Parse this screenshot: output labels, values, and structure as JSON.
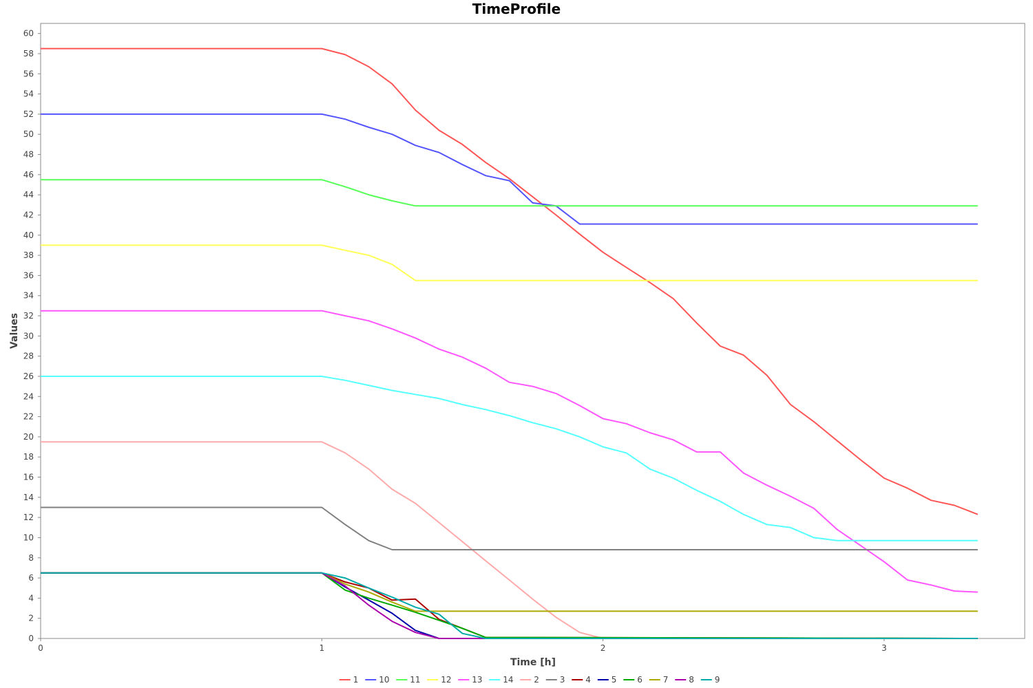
{
  "chart_data": {
    "type": "line",
    "title": "TimeProfile",
    "xlabel": "Time [h]",
    "ylabel": "Values",
    "xlim": [
      0,
      3.5
    ],
    "ylim": [
      0,
      61
    ],
    "x_ticks": [
      0,
      1,
      2,
      3
    ],
    "y_ticks": [
      0,
      2,
      4,
      6,
      8,
      10,
      12,
      14,
      16,
      18,
      20,
      22,
      24,
      26,
      28,
      30,
      32,
      34,
      36,
      38,
      40,
      42,
      44,
      46,
      48,
      50,
      52,
      54,
      56,
      58,
      60
    ],
    "grid": false,
    "legend_position": "bottom",
    "series": [
      {
        "name": "1",
        "color": "#ff5555",
        "x": [
          0,
          1,
          1.083,
          1.167,
          1.25,
          1.333,
          1.417,
          1.5,
          1.583,
          1.667,
          1.75,
          1.833,
          1.917,
          2.0,
          2.083,
          2.167,
          2.25,
          2.333,
          2.417,
          2.5,
          2.583,
          2.667,
          2.75,
          2.833,
          2.917,
          3.0,
          3.083,
          3.167,
          3.25,
          3.333
        ],
        "y": [
          58.5,
          58.5,
          57.9,
          56.7,
          55.0,
          52.4,
          50.4,
          49.0,
          47.2,
          45.6,
          43.8,
          42.0,
          40.1,
          38.3,
          36.8,
          35.3,
          33.7,
          31.3,
          29.0,
          28.1,
          26.1,
          23.2,
          21.5,
          19.6,
          17.7,
          15.9,
          14.9,
          13.7,
          13.2,
          12.3
        ]
      },
      {
        "name": "10",
        "color": "#5555ff",
        "x": [
          0,
          1,
          1.083,
          1.167,
          1.25,
          1.333,
          1.417,
          1.5,
          1.583,
          1.667,
          1.75,
          1.833,
          1.917,
          3.333
        ],
        "y": [
          52.0,
          52.0,
          51.5,
          50.7,
          50.0,
          48.9,
          48.2,
          47.0,
          45.9,
          45.4,
          43.2,
          42.9,
          41.1,
          41.1
        ]
      },
      {
        "name": "11",
        "color": "#55ff55",
        "x": [
          0,
          1,
          1.083,
          1.167,
          1.25,
          1.333,
          3.333
        ],
        "y": [
          45.5,
          45.5,
          44.8,
          44.0,
          43.4,
          42.9,
          42.9
        ]
      },
      {
        "name": "12",
        "color": "#ffff55",
        "x": [
          0,
          1,
          1.083,
          1.167,
          1.25,
          1.333,
          3.333
        ],
        "y": [
          39.0,
          39.0,
          38.5,
          38.0,
          37.1,
          35.5,
          35.5
        ]
      },
      {
        "name": "13",
        "color": "#ff55ff",
        "x": [
          0,
          1,
          1.083,
          1.167,
          1.25,
          1.333,
          1.417,
          1.5,
          1.583,
          1.667,
          1.75,
          1.833,
          1.917,
          2.0,
          2.083,
          2.167,
          2.25,
          2.333,
          2.417,
          2.5,
          2.583,
          2.667,
          2.75,
          2.833,
          2.917,
          3.0,
          3.083,
          3.167,
          3.25,
          3.333
        ],
        "y": [
          32.5,
          32.5,
          32.0,
          31.5,
          30.7,
          29.8,
          28.7,
          27.9,
          26.8,
          25.4,
          25.0,
          24.3,
          23.1,
          21.8,
          21.3,
          20.4,
          19.7,
          18.5,
          18.5,
          16.4,
          15.2,
          14.1,
          12.9,
          10.8,
          9.2,
          7.6,
          5.8,
          5.3,
          4.7,
          4.6
        ]
      },
      {
        "name": "14",
        "color": "#55ffff",
        "x": [
          0,
          1,
          1.083,
          1.167,
          1.25,
          1.333,
          1.417,
          1.5,
          1.583,
          1.667,
          1.75,
          1.833,
          1.917,
          2.0,
          2.083,
          2.167,
          2.25,
          2.333,
          2.417,
          2.5,
          2.583,
          2.667,
          2.75,
          2.833,
          3.333
        ],
        "y": [
          26.0,
          26.0,
          25.6,
          25.1,
          24.6,
          24.2,
          23.8,
          23.2,
          22.7,
          22.1,
          21.4,
          20.8,
          20.0,
          19.0,
          18.4,
          16.8,
          15.9,
          14.7,
          13.6,
          12.3,
          11.3,
          11.0,
          10.0,
          9.7,
          9.7
        ]
      },
      {
        "name": "2",
        "color": "#ffaaaa",
        "x": [
          0,
          1,
          1.083,
          1.167,
          1.25,
          1.333,
          1.417,
          1.5,
          1.583,
          1.667,
          1.75,
          1.833,
          1.917,
          2.0,
          3.333
        ],
        "y": [
          19.5,
          19.5,
          18.4,
          16.8,
          14.8,
          13.4,
          11.5,
          9.6,
          7.7,
          5.8,
          3.9,
          2.1,
          0.6,
          0.0,
          0.0
        ]
      },
      {
        "name": "3",
        "color": "#808080",
        "x": [
          0,
          1,
          1.083,
          1.167,
          1.25,
          3.333
        ],
        "y": [
          13.0,
          13.0,
          11.3,
          9.7,
          8.8,
          8.8
        ]
      },
      {
        "name": "4",
        "color": "#aa0000",
        "x": [
          0,
          1,
          1.083,
          1.167,
          1.25,
          1.333,
          1.417,
          1.5,
          1.583,
          3.333
        ],
        "y": [
          6.5,
          6.5,
          5.6,
          5.0,
          3.8,
          3.9,
          1.9,
          1.0,
          0.1,
          0.0
        ]
      },
      {
        "name": "5",
        "color": "#0000aa",
        "x": [
          0,
          1,
          1.083,
          1.167,
          1.25,
          1.333,
          1.417,
          3.333
        ],
        "y": [
          6.5,
          6.5,
          5.1,
          3.8,
          2.5,
          0.8,
          0.0,
          0.0
        ]
      },
      {
        "name": "6",
        "color": "#00aa00",
        "x": [
          0,
          1,
          1.083,
          1.167,
          1.25,
          1.333,
          1.417,
          1.5,
          1.583,
          3.333
        ],
        "y": [
          6.5,
          6.5,
          4.8,
          4.0,
          3.3,
          2.6,
          1.8,
          1.0,
          0.1,
          0.0
        ]
      },
      {
        "name": "7",
        "color": "#aaaa00",
        "x": [
          0,
          1,
          1.083,
          1.167,
          1.25,
          1.333,
          3.333
        ],
        "y": [
          6.5,
          6.5,
          5.4,
          4.6,
          3.6,
          2.7,
          2.7
        ]
      },
      {
        "name": "8",
        "color": "#aa00aa",
        "x": [
          0,
          1,
          1.083,
          1.167,
          1.25,
          1.333,
          1.417,
          3.333
        ],
        "y": [
          6.5,
          6.5,
          5.2,
          3.3,
          1.7,
          0.6,
          0.0,
          0.0
        ]
      },
      {
        "name": "9",
        "color": "#00aaaa",
        "x": [
          0,
          1,
          1.083,
          1.167,
          1.25,
          1.333,
          1.417,
          1.5,
          1.583,
          3.333
        ],
        "y": [
          6.5,
          6.5,
          6.0,
          5.0,
          4.1,
          3.1,
          2.4,
          0.5,
          0.0,
          0.0
        ]
      }
    ]
  }
}
